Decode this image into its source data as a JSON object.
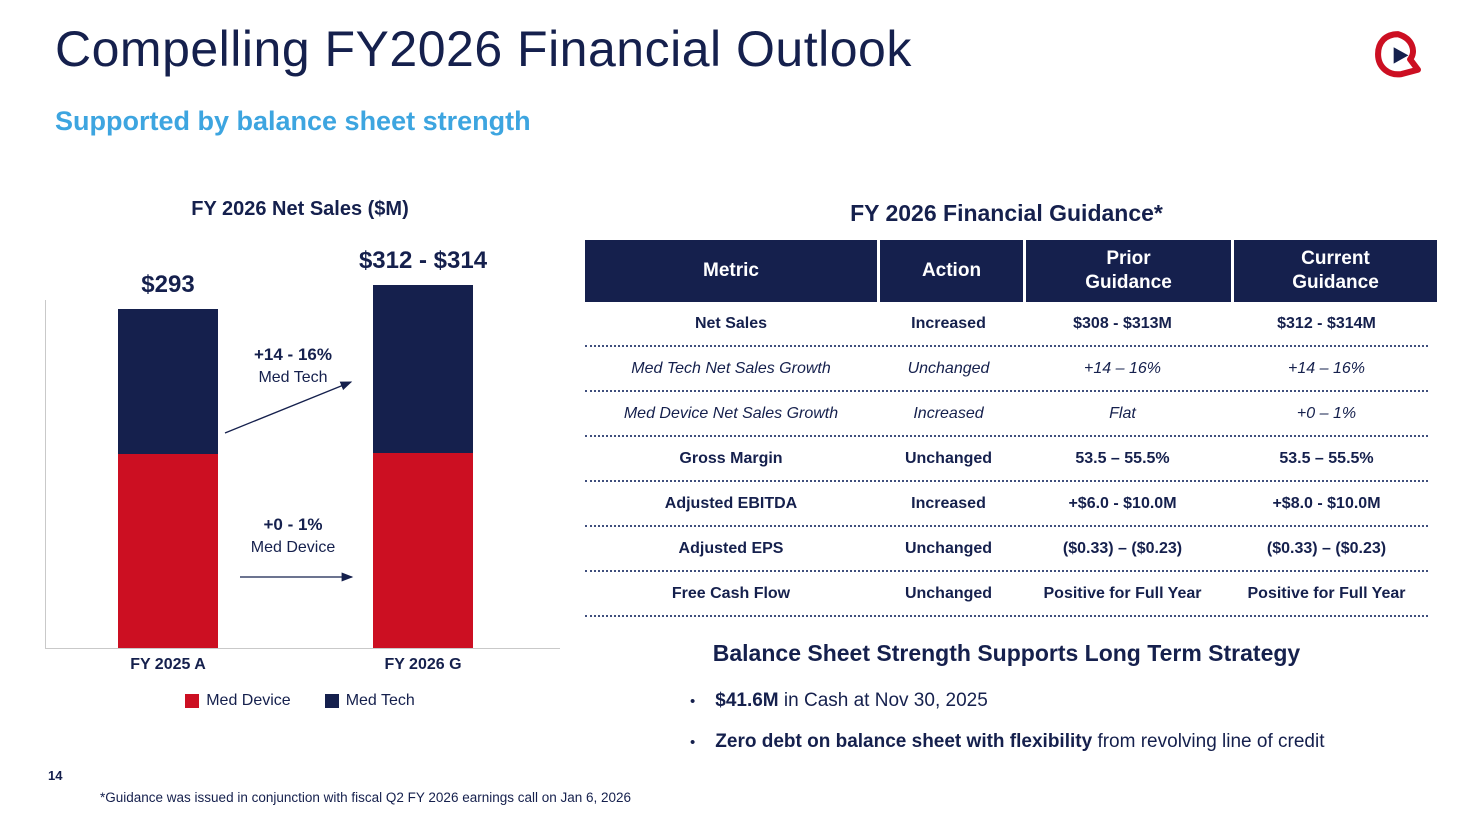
{
  "slide": {
    "title": "Compelling FY2026 Financial Outlook",
    "subtitle": "Supported by balance sheet strength",
    "page_number": "14",
    "footnote": "*Guidance was issued in conjunction with fiscal Q2 FY 2026 earnings call on Jan 6, 2026"
  },
  "colors": {
    "navy": "#15204d",
    "red": "#cc0f22",
    "light_blue": "#3da5e0"
  },
  "chart_data": {
    "type": "bar",
    "stacked": true,
    "title": "FY 2026 Net Sales ($M)",
    "categories": [
      "FY 2025 A",
      "FY 2026 G"
    ],
    "series": [
      {
        "name": "Med Device",
        "color": "#cc0f22",
        "values": [
          168,
          169
        ]
      },
      {
        "name": "Med Tech",
        "color": "#15204d",
        "values": [
          125,
          145
        ]
      }
    ],
    "totals": [
      293,
      313
    ],
    "totals_labels": [
      "$293",
      "$312 - $314"
    ],
    "annotations": [
      {
        "line1": "+14 - 16%",
        "line2": "Med Tech"
      },
      {
        "line1": "+0 - 1%",
        "line2": "Med Device"
      }
    ],
    "ylim": [
      0,
      314
    ],
    "legend_position": "bottom"
  },
  "guidance_table": {
    "title": "FY 2026 Financial Guidance*",
    "columns": [
      "Metric",
      "Action",
      "Prior\nGuidance",
      "Current\nGuidance"
    ],
    "rows": [
      {
        "metric": "Net Sales",
        "action": "Increased",
        "prior": "$308 - $313M",
        "current": "$312 - $314M",
        "italic": false
      },
      {
        "metric": "Med Tech Net Sales Growth",
        "action": "Unchanged",
        "prior": "+14 – 16%",
        "current": "+14 – 16%",
        "italic": true
      },
      {
        "metric": "Med Device Net Sales Growth",
        "action": "Increased",
        "prior": "Flat",
        "current": "+0 – 1%",
        "italic": true
      },
      {
        "metric": "Gross Margin",
        "action": "Unchanged",
        "prior": "53.5 – 55.5%",
        "current": "53.5 – 55.5%",
        "italic": false
      },
      {
        "metric": "Adjusted EBITDA",
        "action": "Increased",
        "prior": "+$6.0 - $10.0M",
        "current": "+$8.0 - $10.0M",
        "italic": false
      },
      {
        "metric": "Adjusted EPS",
        "action": "Unchanged",
        "prior": "($0.33) – ($0.23)",
        "current": "($0.33) – ($0.23)",
        "italic": false
      },
      {
        "metric": "Free Cash Flow",
        "action": "Unchanged",
        "prior": "Positive for Full Year",
        "current": "Positive for Full Year",
        "italic": false
      }
    ]
  },
  "balance_sheet": {
    "heading": "Balance Sheet Strength Supports Long Term Strategy",
    "bullets": [
      {
        "bold": "$41.6M",
        "rest": " in Cash at Nov 30, 2025"
      },
      {
        "bold": "Zero debt on balance sheet with flexibility",
        "rest": " from revolving line of credit"
      }
    ]
  }
}
